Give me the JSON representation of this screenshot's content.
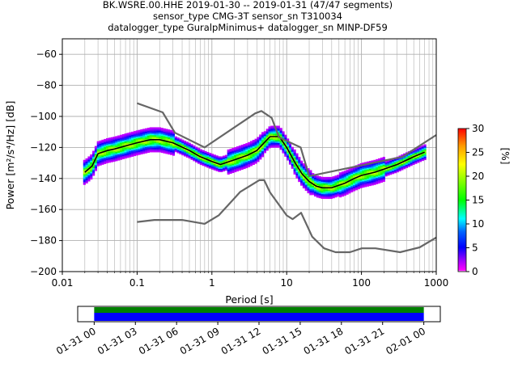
{
  "chart_data": [
    {
      "type": "heatmap",
      "title_lines": [
        "BK.WSRE.00.HHE   2019-01-30 -- 2019-01-31  (47/47 segments)",
        "sensor_type CMG-3T sensor_sn T310034",
        "datalogger_type GuralpMinimus+ datalogger_sn MINP-DF59"
      ],
      "xlabel": "Period [s]",
      "ylabel": "Power [m²/s⁴/Hz] [dB]",
      "x_scale": "log",
      "xlim": [
        0.01,
        1000
      ],
      "ylim": [
        -200,
        -50
      ],
      "x_ticks": [
        {
          "value": 0.01,
          "label": "0.01"
        },
        {
          "value": 0.1,
          "label": "0.1"
        },
        {
          "value": 1,
          "label": "1"
        },
        {
          "value": 10,
          "label": "10"
        },
        {
          "value": 100,
          "label": "100"
        },
        {
          "value": 1000,
          "label": "1000"
        }
      ],
      "y_ticks": [
        -60,
        -80,
        -100,
        -120,
        -140,
        -160,
        -180,
        -200
      ],
      "grid": true,
      "colorbar": {
        "label": "[%]",
        "min": 0,
        "max": 30,
        "ticks": [
          0,
          5,
          10,
          15,
          20,
          25,
          30
        ]
      },
      "series": [
        {
          "name": "",
          "role": "mode",
          "color": "#000000",
          "x": [
            0.02,
            0.025,
            0.03,
            0.04,
            0.05,
            0.07,
            0.1,
            0.15,
            0.2,
            0.3,
            0.5,
            0.7,
            1.0,
            1.3,
            2.0,
            3.0,
            4.0,
            5.0,
            6.0,
            8.0,
            10.0,
            13.0,
            16.0,
            20.0,
            25.0,
            30.0,
            40.0,
            60.0,
            80.0,
            100.0,
            150.0,
            200.0,
            300.0,
            500.0,
            700.0
          ],
          "y": [
            -136,
            -132,
            -124,
            -122,
            -121,
            -119,
            -117,
            -115,
            -115,
            -117,
            -122,
            -126,
            -129,
            -131,
            -128,
            -125,
            -122,
            -117,
            -113,
            -113,
            -120,
            -130,
            -137,
            -142,
            -145,
            -146,
            -146,
            -143,
            -140,
            -138,
            -136,
            -134,
            -131,
            -126,
            -123
          ]
        },
        {
          "name": "",
          "role": "high-noise-model",
          "color": "#666666",
          "x": [
            0.1,
            0.22,
            0.32,
            0.8,
            3.8,
            4.6,
            6.3,
            7.9,
            15.4,
            20.0,
            354.8,
            1000.0
          ],
          "y": [
            -91.5,
            -97.4,
            -110.5,
            -120.0,
            -98.0,
            -96.5,
            -101.0,
            -113.5,
            -120.0,
            -138.5,
            -126.0,
            -112.0
          ]
        },
        {
          "name": "",
          "role": "low-noise-model",
          "color": "#666666",
          "x": [
            0.1,
            0.17,
            0.4,
            0.8,
            1.24,
            2.4,
            4.3,
            5.0,
            6.0,
            10.0,
            12.0,
            15.6,
            21.9,
            31.6,
            45.0,
            70.0,
            101.0,
            154.0,
            328.0,
            600.0,
            1000.0
          ],
          "y": [
            -168.0,
            -166.7,
            -166.7,
            -169.2,
            -163.7,
            -148.6,
            -141.1,
            -141.1,
            -149.0,
            -163.8,
            -166.2,
            -162.1,
            -177.5,
            -185.0,
            -187.5,
            -187.5,
            -185.0,
            -185.0,
            -187.5,
            -184.4,
            -178.0
          ]
        }
      ]
    },
    {
      "type": "bar",
      "role": "data-coverage",
      "x_ticks": [
        "01-31 00",
        "01-31 03",
        "01-31 06",
        "01-31 09",
        "01-31 12",
        "01-31 15",
        "01-31 18",
        "01-31 21",
        "02-01 00"
      ],
      "xlim_hours": [
        -1.2,
        25.2
      ],
      "coverage": [
        {
          "start_hour": 0,
          "end_hour": 24,
          "color": "#008000"
        },
        {
          "start_hour": 0,
          "end_hour": 24,
          "color": "#0000ff"
        }
      ]
    }
  ]
}
